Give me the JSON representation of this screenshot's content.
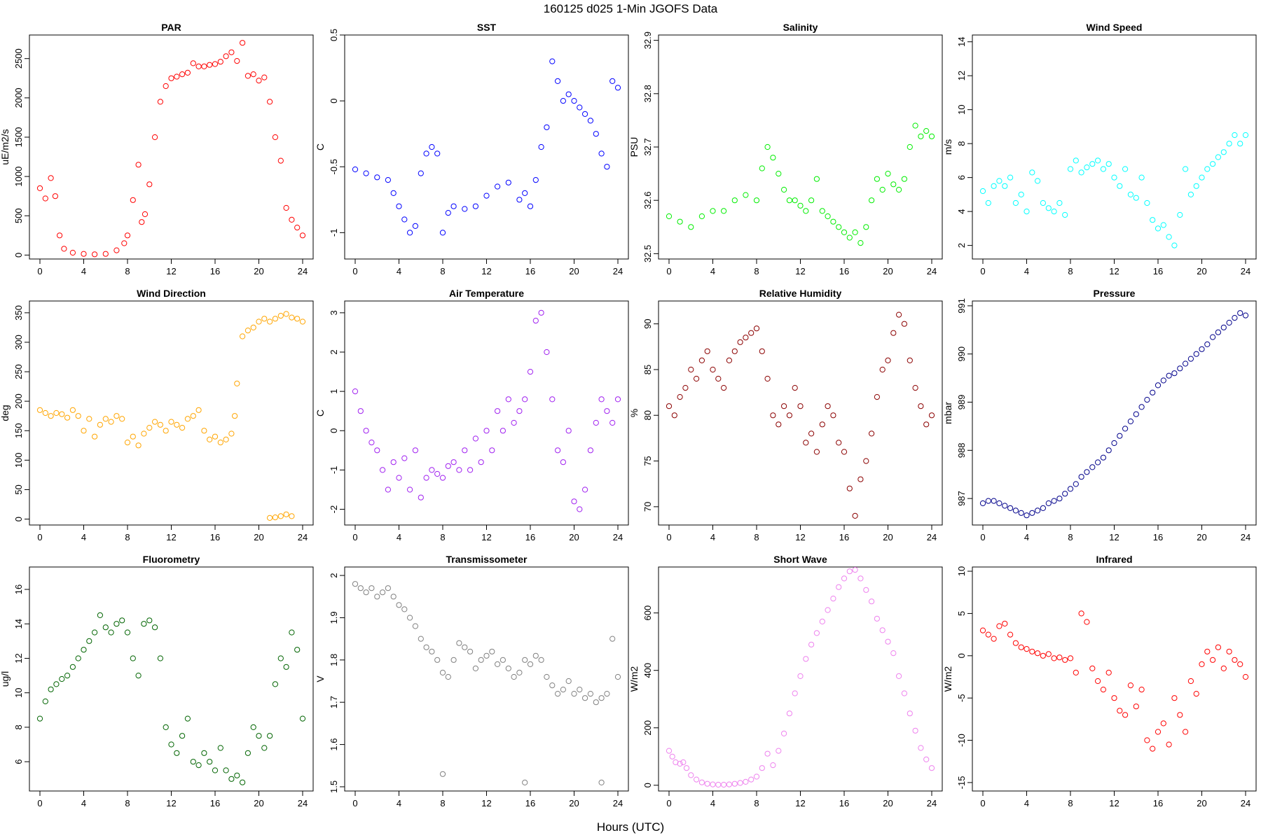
{
  "figure": {
    "title": "160125   d025   1-Min  JGOFS Data",
    "xlabel": "Hours (UTC)"
  },
  "chart_data": [
    {
      "type": "scatter",
      "title": "PAR",
      "ylabel": "uE/m2/s",
      "xlim": [
        0,
        24
      ],
      "ylim": [
        -50,
        2800
      ],
      "yticks": [
        0,
        500,
        1000,
        1500,
        2000,
        2500
      ],
      "color": "#ff0000",
      "x": [
        0,
        0.5,
        1,
        1.4,
        1.8,
        2.2,
        3,
        4,
        5,
        6,
        7,
        7.7,
        8,
        8.5,
        9,
        9.3,
        9.6,
        10,
        10.5,
        11,
        11.5,
        12,
        12.5,
        13,
        13.5,
        14,
        14.5,
        15,
        15.5,
        16,
        16.5,
        17,
        17.5,
        18,
        18.5,
        19,
        19.5,
        20,
        20.5,
        21,
        21.5,
        22,
        22.5,
        23,
        23.5,
        24
      ],
      "y": [
        850,
        720,
        980,
        750,
        250,
        80,
        30,
        15,
        10,
        15,
        60,
        150,
        250,
        700,
        1150,
        420,
        520,
        900,
        1500,
        1950,
        2150,
        2250,
        2270,
        2300,
        2320,
        2440,
        2400,
        2400,
        2420,
        2430,
        2460,
        2530,
        2580,
        2470,
        2700,
        2280,
        2300,
        2220,
        2260,
        1950,
        1500,
        1200,
        600,
        450,
        350,
        250
      ]
    },
    {
      "type": "scatter",
      "title": "SST",
      "ylabel": "C",
      "xlim": [
        0,
        24
      ],
      "ylim": [
        -1.2,
        0.5
      ],
      "yticks": [
        -1.0,
        -0.5,
        0.0,
        0.5
      ],
      "color": "#0000ff",
      "x": [
        0,
        1,
        2,
        3,
        3.5,
        4,
        4.5,
        5,
        5.5,
        6,
        6.5,
        7,
        7.5,
        8,
        8.5,
        9,
        10,
        11,
        12,
        13,
        14,
        15,
        15.5,
        16,
        16.5,
        17,
        17.5,
        18,
        18.5,
        19,
        19.5,
        20,
        20.5,
        21,
        21.5,
        22,
        22.5,
        23,
        23.5,
        24
      ],
      "y": [
        -0.52,
        -0.55,
        -0.58,
        -0.6,
        -0.7,
        -0.8,
        -0.9,
        -1.0,
        -0.95,
        -0.55,
        -0.4,
        -0.35,
        -0.4,
        -1.0,
        -0.85,
        -0.8,
        -0.82,
        -0.8,
        -0.72,
        -0.65,
        -0.62,
        -0.75,
        -0.7,
        -0.8,
        -0.6,
        -0.35,
        -0.2,
        0.3,
        0.15,
        0.0,
        0.05,
        0.0,
        -0.05,
        -0.1,
        -0.15,
        -0.25,
        -0.4,
        -0.5,
        0.15,
        0.1
      ]
    },
    {
      "type": "scatter",
      "title": "Salinity",
      "ylabel": "PSU",
      "xlim": [
        0,
        24
      ],
      "ylim": [
        32.49,
        32.91
      ],
      "yticks": [
        32.5,
        32.6,
        32.7,
        32.8,
        32.9
      ],
      "color": "#00ee00",
      "x": [
        0,
        1,
        2,
        3,
        4,
        5,
        6,
        7,
        8,
        8.5,
        9,
        9.5,
        10,
        10.5,
        11,
        11.5,
        12,
        12.5,
        13,
        13.5,
        14,
        14.5,
        15,
        15.5,
        16,
        16.5,
        17,
        17.5,
        18,
        18.5,
        19,
        19.5,
        20,
        20.5,
        21,
        21.5,
        22,
        22.5,
        23,
        23.5,
        24
      ],
      "y": [
        32.57,
        32.56,
        32.55,
        32.57,
        32.58,
        32.58,
        32.6,
        32.61,
        32.6,
        32.66,
        32.7,
        32.68,
        32.65,
        32.62,
        32.6,
        32.6,
        32.59,
        32.58,
        32.6,
        32.64,
        32.58,
        32.57,
        32.56,
        32.55,
        32.54,
        32.53,
        32.54,
        32.52,
        32.55,
        32.6,
        32.64,
        32.62,
        32.65,
        32.63,
        32.62,
        32.64,
        32.7,
        32.74,
        32.72,
        32.73,
        32.72
      ]
    },
    {
      "type": "scatter",
      "title": "Wind Speed",
      "ylabel": "m/s",
      "xlim": [
        0,
        24
      ],
      "ylim": [
        1.2,
        14.4
      ],
      "yticks": [
        2,
        4,
        6,
        8,
        10,
        12,
        14
      ],
      "color": "#00ffff",
      "x": [
        0,
        0.5,
        1,
        1.5,
        2,
        2.5,
        3,
        3.5,
        4,
        4.5,
        5,
        5.5,
        6,
        6.5,
        7,
        7.5,
        8,
        8.5,
        9,
        9.5,
        10,
        10.5,
        11,
        11.5,
        12,
        12.5,
        13,
        13.5,
        14,
        14.5,
        15,
        15.5,
        16,
        16.5,
        17,
        17.5,
        18,
        18.5,
        19,
        19.5,
        20,
        20.5,
        21,
        21.5,
        22,
        22.5,
        23,
        23.5,
        24
      ],
      "y": [
        5.2,
        4.5,
        5.5,
        5.8,
        5.5,
        6.0,
        4.5,
        5.0,
        4.0,
        6.3,
        5.8,
        4.5,
        4.2,
        4.0,
        4.5,
        3.8,
        6.5,
        7.0,
        6.3,
        6.6,
        6.8,
        7.0,
        6.5,
        6.8,
        6.0,
        5.5,
        6.5,
        5.0,
        4.8,
        6.0,
        4.5,
        3.5,
        3.0,
        3.2,
        2.5,
        2.0,
        3.8,
        6.5,
        5.0,
        5.5,
        6.0,
        6.5,
        6.8,
        7.2,
        7.5,
        8.0,
        8.5,
        8.0,
        8.5
      ]
    },
    {
      "type": "scatter",
      "title": "Wind Direction",
      "ylabel": "deg",
      "xlim": [
        0,
        24
      ],
      "ylim": [
        -10,
        370
      ],
      "yticks": [
        0,
        50,
        100,
        150,
        200,
        250,
        300,
        350
      ],
      "color": "#ffa500",
      "x": [
        0,
        0.5,
        1,
        1.5,
        2,
        2.5,
        3,
        3.5,
        4,
        4.5,
        5,
        5.5,
        6,
        6.5,
        7,
        7.5,
        8,
        8.5,
        9,
        9.5,
        10,
        10.5,
        11,
        11.5,
        12,
        12.5,
        13,
        13.5,
        14,
        14.5,
        15,
        15.5,
        16,
        16.5,
        17,
        17.5,
        17.8,
        18,
        18.5,
        19,
        19.5,
        20,
        20.5,
        21,
        21.5,
        22,
        22.5,
        23,
        23.5,
        24,
        21,
        21.5,
        22,
        22.5,
        23
      ],
      "y": [
        185,
        180,
        175,
        180,
        178,
        172,
        185,
        175,
        150,
        170,
        140,
        160,
        170,
        165,
        175,
        170,
        130,
        140,
        125,
        145,
        155,
        165,
        160,
        150,
        165,
        160,
        155,
        170,
        175,
        185,
        150,
        135,
        140,
        130,
        135,
        145,
        175,
        230,
        310,
        320,
        325,
        335,
        340,
        335,
        340,
        345,
        348,
        342,
        340,
        335,
        2,
        3,
        5,
        8,
        5
      ]
    },
    {
      "type": "scatter",
      "title": "Air Temperature",
      "ylabel": "C",
      "xlim": [
        0,
        24
      ],
      "ylim": [
        -2.4,
        3.3
      ],
      "yticks": [
        -2,
        -1,
        0,
        1,
        2,
        3
      ],
      "color": "#a020f0",
      "x": [
        0,
        0.5,
        1,
        1.5,
        2,
        2.5,
        3,
        3.5,
        4,
        4.5,
        5,
        5.5,
        6,
        6.5,
        7,
        7.5,
        8,
        8.5,
        9,
        9.5,
        10,
        10.5,
        11,
        11.5,
        12,
        12.5,
        13,
        13.5,
        14,
        14.5,
        15,
        15.5,
        16,
        16.5,
        17,
        17.5,
        18,
        18.5,
        19,
        19.5,
        20,
        20.5,
        21,
        21.5,
        22,
        22.5,
        23,
        23.5,
        24
      ],
      "y": [
        1.0,
        0.5,
        0.0,
        -0.3,
        -0.5,
        -1.0,
        -1.5,
        -0.8,
        -1.2,
        -0.7,
        -1.5,
        -0.5,
        -1.7,
        -1.2,
        -1.0,
        -1.1,
        -1.2,
        -0.9,
        -0.8,
        -1.0,
        -0.5,
        -1.0,
        -0.2,
        -0.8,
        0.0,
        -0.5,
        0.5,
        0.0,
        0.8,
        0.2,
        0.5,
        0.8,
        1.5,
        2.8,
        3.0,
        2.0,
        0.8,
        -0.5,
        -0.8,
        0.0,
        -1.8,
        -2.0,
        -1.5,
        -0.5,
        0.2,
        0.8,
        0.5,
        0.2,
        0.8
      ]
    },
    {
      "type": "scatter",
      "title": "Relative Humidity",
      "ylabel": "%",
      "xlim": [
        0,
        24
      ],
      "ylim": [
        68,
        92.5
      ],
      "yticks": [
        70,
        75,
        80,
        85,
        90
      ],
      "color": "#8b0000",
      "x": [
        0,
        0.5,
        1,
        1.5,
        2,
        2.5,
        3,
        3.5,
        4,
        4.5,
        5,
        5.5,
        6,
        6.5,
        7,
        7.5,
        8,
        8.5,
        9,
        9.5,
        10,
        10.5,
        11,
        11.5,
        12,
        12.5,
        13,
        13.5,
        14,
        14.5,
        15,
        15.5,
        16,
        16.5,
        17,
        17.5,
        18,
        18.5,
        19,
        19.5,
        20,
        20.5,
        21,
        21.5,
        22,
        22.5,
        23,
        23.5,
        24
      ],
      "y": [
        81,
        80,
        82,
        83,
        85,
        84,
        86,
        87,
        85,
        84,
        83,
        86,
        87,
        88,
        88.5,
        89,
        89.5,
        87,
        84,
        80,
        79,
        81,
        80,
        83,
        81,
        77,
        78,
        76,
        79,
        81,
        80,
        77,
        76,
        72,
        69,
        73,
        75,
        78,
        82,
        85,
        86,
        89,
        91,
        90,
        86,
        83,
        81,
        79,
        80
      ]
    },
    {
      "type": "scatter",
      "title": "Pressure",
      "ylabel": "mbar",
      "xlim": [
        0,
        24
      ],
      "ylim": [
        986.45,
        991.1
      ],
      "yticks": [
        987,
        988,
        989,
        990,
        991
      ],
      "color": "#00008b",
      "x": [
        0,
        0.5,
        1,
        1.5,
        2,
        2.5,
        3,
        3.5,
        4,
        4.5,
        5,
        5.5,
        6,
        6.5,
        7,
        7.5,
        8,
        8.5,
        9,
        9.5,
        10,
        10.5,
        11,
        11.5,
        12,
        12.5,
        13,
        13.5,
        14,
        14.5,
        15,
        15.5,
        16,
        16.5,
        17,
        17.5,
        18,
        18.5,
        19,
        19.5,
        20,
        20.5,
        21,
        21.5,
        22,
        22.5,
        23,
        23.5,
        24
      ],
      "y": [
        986.9,
        986.95,
        986.95,
        986.9,
        986.85,
        986.8,
        986.75,
        986.7,
        986.65,
        986.7,
        986.75,
        986.8,
        986.9,
        986.95,
        987.0,
        987.1,
        987.2,
        987.3,
        987.45,
        987.55,
        987.65,
        987.75,
        987.85,
        988.0,
        988.15,
        988.3,
        988.45,
        988.6,
        988.75,
        988.9,
        989.05,
        989.2,
        989.35,
        989.45,
        989.55,
        989.6,
        989.7,
        989.8,
        989.9,
        990.0,
        990.1,
        990.2,
        990.35,
        990.45,
        990.55,
        990.65,
        990.75,
        990.85,
        990.8
      ]
    },
    {
      "type": "scatter",
      "title": "Fluorometry",
      "ylabel": "ug/l",
      "xlim": [
        0,
        24
      ],
      "ylim": [
        4.3,
        17.3
      ],
      "yticks": [
        6,
        8,
        10,
        12,
        14,
        16
      ],
      "color": "#006400",
      "x": [
        0,
        0.5,
        1,
        1.5,
        2,
        2.5,
        3,
        3.5,
        4,
        4.5,
        5,
        5.5,
        6,
        6.5,
        7,
        7.5,
        8,
        8.5,
        9,
        9.5,
        10,
        10.5,
        11,
        11.5,
        12,
        12.5,
        13,
        13.5,
        14,
        14.5,
        15,
        15.5,
        16,
        16.5,
        17,
        17.5,
        18,
        18.5,
        19,
        19.5,
        20,
        20.5,
        21,
        21.5,
        22,
        22.5,
        23,
        23.5,
        24
      ],
      "y": [
        8.5,
        9.5,
        10.2,
        10.5,
        10.8,
        11.0,
        11.5,
        12.0,
        12.5,
        13.0,
        13.5,
        14.5,
        13.8,
        13.5,
        14.0,
        14.2,
        13.5,
        12.0,
        11.0,
        14.0,
        14.2,
        13.8,
        12.0,
        8.0,
        7.0,
        6.5,
        7.5,
        8.5,
        6.0,
        5.8,
        6.5,
        6.0,
        5.5,
        6.8,
        5.5,
        5.0,
        5.2,
        4.8,
        6.5,
        8.0,
        7.5,
        6.8,
        7.5,
        10.5,
        12.0,
        11.5,
        13.5,
        12.5,
        8.5
      ]
    },
    {
      "type": "scatter",
      "title": "Transmissometer",
      "ylabel": "V",
      "xlim": [
        0,
        24
      ],
      "ylim": [
        1.49,
        2.02
      ],
      "yticks": [
        1.5,
        1.6,
        1.7,
        1.8,
        1.9,
        2.0
      ],
      "color": "#808080",
      "x": [
        0,
        0.5,
        1,
        1.5,
        2,
        2.5,
        3,
        3.5,
        4,
        4.5,
        5,
        5.5,
        6,
        6.5,
        7,
        7.5,
        8,
        8.5,
        9,
        9.5,
        10,
        10.5,
        11,
        11.5,
        12,
        12.5,
        13,
        13.5,
        14,
        14.5,
        15,
        15.5,
        16,
        16.5,
        17,
        17.5,
        18,
        18.5,
        19,
        19.5,
        20,
        20.5,
        21,
        21.5,
        22,
        22.5,
        23,
        23.5,
        24,
        8.0,
        15.5,
        22.5
      ],
      "y": [
        1.98,
        1.97,
        1.96,
        1.97,
        1.95,
        1.96,
        1.97,
        1.95,
        1.93,
        1.92,
        1.9,
        1.88,
        1.85,
        1.83,
        1.82,
        1.8,
        1.77,
        1.76,
        1.8,
        1.84,
        1.83,
        1.82,
        1.78,
        1.8,
        1.81,
        1.82,
        1.79,
        1.8,
        1.78,
        1.76,
        1.77,
        1.8,
        1.79,
        1.81,
        1.8,
        1.76,
        1.74,
        1.72,
        1.73,
        1.75,
        1.72,
        1.73,
        1.71,
        1.72,
        1.7,
        1.71,
        1.72,
        1.85,
        1.76,
        1.53,
        1.51,
        1.51
      ]
    },
    {
      "type": "scatter",
      "title": "Short Wave",
      "ylabel": "W/m2",
      "xlim": [
        0,
        24
      ],
      "ylim": [
        -20,
        760
      ],
      "yticks": [
        0,
        200,
        400,
        600
      ],
      "color": "#ee82ee",
      "x": [
        0,
        0.3,
        0.6,
        1,
        1.3,
        1.6,
        2,
        2.5,
        3,
        3.5,
        4,
        4.5,
        5,
        5.5,
        6,
        6.5,
        7,
        7.5,
        8,
        8.5,
        9,
        9.5,
        10,
        10.5,
        11,
        11.5,
        12,
        12.5,
        13,
        13.5,
        14,
        14.5,
        15,
        15.5,
        16,
        16.5,
        17,
        17.5,
        18,
        18.5,
        19,
        19.5,
        20,
        20.5,
        21,
        21.5,
        22,
        22.5,
        23,
        23.5,
        24
      ],
      "y": [
        120,
        100,
        80,
        75,
        80,
        60,
        35,
        20,
        10,
        5,
        3,
        2,
        2,
        3,
        5,
        8,
        12,
        20,
        30,
        60,
        110,
        70,
        120,
        180,
        250,
        320,
        380,
        440,
        490,
        530,
        570,
        610,
        650,
        690,
        720,
        745,
        750,
        720,
        680,
        640,
        580,
        540,
        500,
        460,
        380,
        320,
        250,
        190,
        130,
        90,
        60
      ]
    },
    {
      "type": "scatter",
      "title": "Infrared",
      "ylabel": "W/m2",
      "xlim": [
        0,
        24
      ],
      "ylim": [
        -16,
        10.5
      ],
      "yticks": [
        -15,
        -10,
        -5,
        0,
        5,
        10
      ],
      "color": "#ff0000",
      "x": [
        0,
        0.5,
        1,
        1.5,
        2,
        2.5,
        3,
        3.5,
        4,
        4.5,
        5,
        5.5,
        6,
        6.5,
        7,
        7.5,
        8,
        8.5,
        9,
        9.5,
        10,
        10.5,
        11,
        11.5,
        12,
        12.5,
        13,
        13.5,
        14,
        14.5,
        15,
        15.5,
        16,
        16.5,
        17,
        17.5,
        18,
        18.5,
        19,
        19.5,
        20,
        20.5,
        21,
        21.5,
        22,
        22.5,
        23,
        23.5,
        24
      ],
      "y": [
        3.0,
        2.5,
        2.0,
        3.5,
        3.8,
        2.5,
        1.5,
        1.0,
        0.8,
        0.5,
        0.3,
        0.0,
        0.2,
        -0.3,
        -0.2,
        -0.5,
        -0.3,
        -2.0,
        5.0,
        4.0,
        -1.5,
        -3.0,
        -4.0,
        -2.0,
        -5.0,
        -6.5,
        -7.0,
        -3.5,
        -6.0,
        -4.0,
        -10.0,
        -11.0,
        -9.0,
        -8.0,
        -10.5,
        -5.0,
        -7.0,
        -9.0,
        -3.0,
        -4.5,
        -1.0,
        0.5,
        -0.5,
        1.0,
        -1.5,
        0.5,
        -0.5,
        -1.0,
        -2.5
      ]
    }
  ]
}
